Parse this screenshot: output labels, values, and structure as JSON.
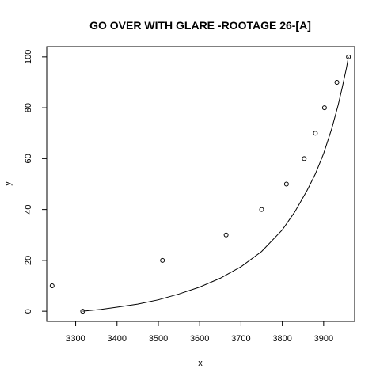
{
  "chart_data": {
    "type": "scatter",
    "title": "GO OVER WITH GLARE -ROOTAGE 26-[A]",
    "xlabel": "x",
    "ylabel": "y",
    "xlim": [
      3230,
      3975
    ],
    "ylim": [
      -4,
      104
    ],
    "xticks": [
      3300,
      3400,
      3500,
      3600,
      3700,
      3800,
      3900
    ],
    "yticks": [
      0,
      20,
      40,
      60,
      80,
      100
    ],
    "grid": false,
    "legend": "none",
    "points": [
      {
        "x": 3243,
        "y": 10
      },
      {
        "x": 3317,
        "y": 0
      },
      {
        "x": 3510,
        "y": 20
      },
      {
        "x": 3664,
        "y": 30
      },
      {
        "x": 3750,
        "y": 40
      },
      {
        "x": 3810,
        "y": 50
      },
      {
        "x": 3853,
        "y": 60
      },
      {
        "x": 3880,
        "y": 70
      },
      {
        "x": 3902,
        "y": 80
      },
      {
        "x": 3932,
        "y": 90
      },
      {
        "x": 3960,
        "y": 100
      }
    ],
    "curve": {
      "x": [
        3317,
        3360,
        3400,
        3450,
        3500,
        3550,
        3600,
        3650,
        3700,
        3750,
        3800,
        3830,
        3860,
        3880,
        3900,
        3920,
        3935,
        3945,
        3955,
        3960
      ],
      "y": [
        0,
        0.7,
        1.6,
        2.8,
        4.5,
        6.8,
        9.5,
        13,
        17.5,
        23.5,
        32,
        39,
        47.5,
        54,
        62,
        72,
        81,
        88,
        95.5,
        100
      ]
    }
  }
}
